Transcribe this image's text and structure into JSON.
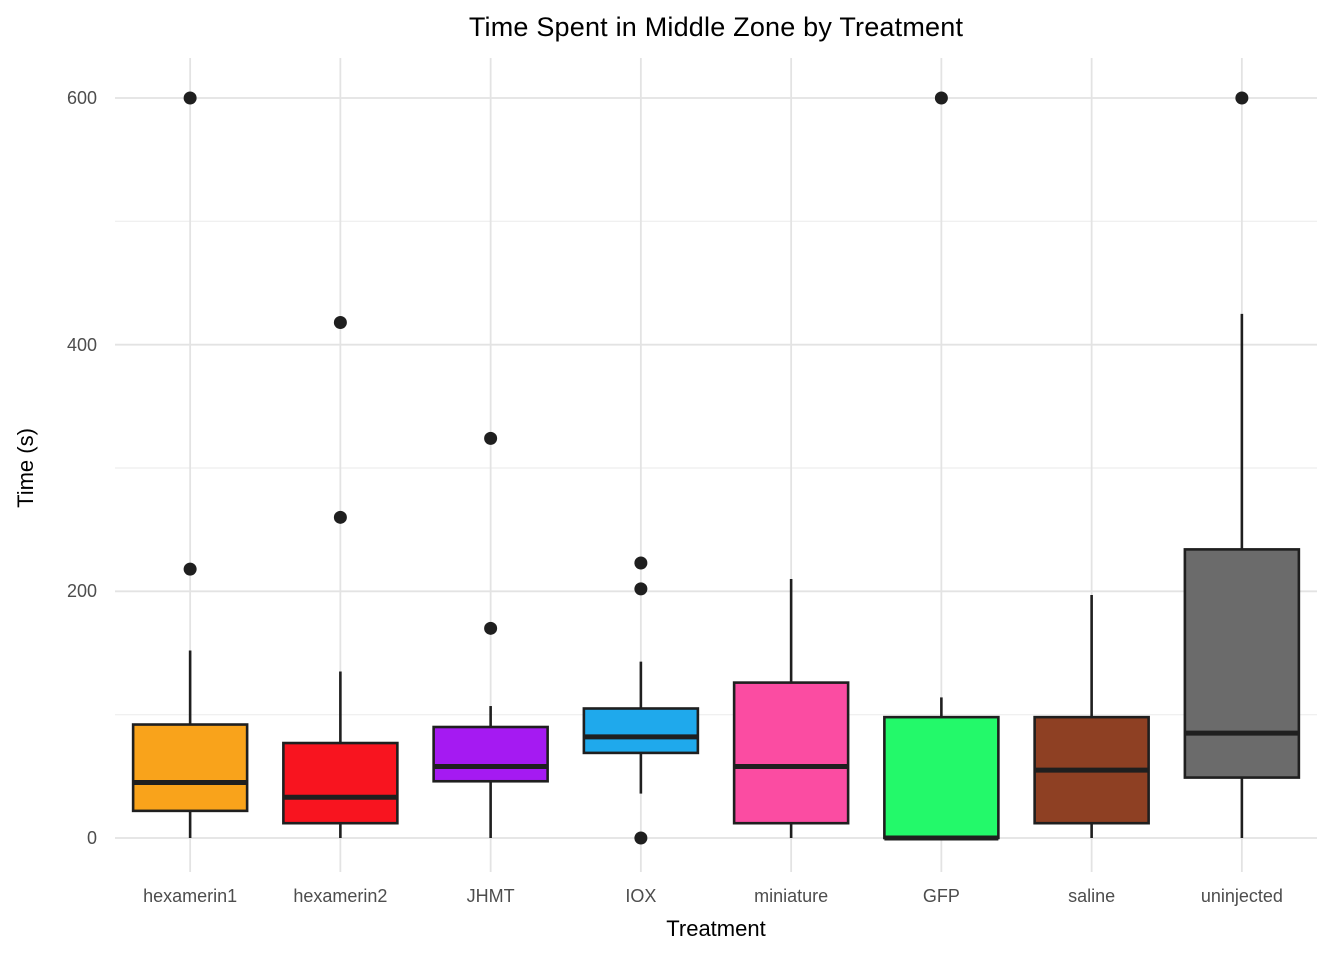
{
  "chart_data": {
    "type": "boxplot",
    "title": "Time Spent in Middle Zone by Treatment",
    "xlabel": "Treatment",
    "ylabel": "Time (s)",
    "ylim": [
      -30,
      632
    ],
    "yticks": [
      0,
      200,
      400,
      600
    ],
    "minor_yticks": [
      100,
      300,
      500
    ],
    "grid": true,
    "legend": "none",
    "categories": [
      "hexamerin1",
      "hexamerin2",
      "JHMT",
      "IOX",
      "miniature",
      "GFP",
      "saline",
      "uninjected"
    ],
    "series": [
      {
        "name": "hexamerin1",
        "color": "#F9A31B",
        "whisker_low": 0,
        "q1": 22,
        "median": 45,
        "q3": 92,
        "whisker_high": 152,
        "outliers": [
          218,
          600
        ]
      },
      {
        "name": "hexamerin2",
        "color": "#F8141F",
        "whisker_low": 0,
        "q1": 12,
        "median": 33,
        "q3": 77,
        "whisker_high": 135,
        "outliers": [
          260,
          418
        ]
      },
      {
        "name": "JHMT",
        "color": "#A51AF2",
        "whisker_low": 0,
        "q1": 46,
        "median": 58,
        "q3": 90,
        "whisker_high": 107,
        "outliers": [
          170,
          324
        ]
      },
      {
        "name": "IOX",
        "color": "#1FA9EC",
        "whisker_low": 36,
        "q1": 69,
        "median": 82,
        "q3": 105,
        "whisker_high": 143,
        "outliers": [
          0,
          202,
          223
        ]
      },
      {
        "name": "miniature",
        "color": "#FB4CA2",
        "whisker_low": 0,
        "q1": 12,
        "median": 58,
        "q3": 126,
        "whisker_high": 210,
        "outliers": []
      },
      {
        "name": "GFP",
        "color": "#23F96A",
        "whisker_low": 0,
        "q1": 0,
        "median": 0,
        "q3": 98,
        "whisker_high": 114,
        "outliers": [
          600
        ]
      },
      {
        "name": "saline",
        "color": "#8E4023",
        "whisker_low": 0,
        "q1": 12,
        "median": 55,
        "q3": 98,
        "whisker_high": 197,
        "outliers": []
      },
      {
        "name": "uninjected",
        "color": "#6B6B6B",
        "whisker_low": 0,
        "q1": 49,
        "median": 85,
        "q3": 234,
        "whisker_high": 425,
        "outliers": [
          600
        ]
      }
    ],
    "style": {
      "box_border": "#1F1F1F",
      "median_color": "#1F1F1F",
      "outlier_color": "#1F1F1F",
      "grid_major": "#E3E3E3",
      "grid_minor": "#EEEEEE",
      "tick_label_color": "#4D4D4D",
      "title_color": "#000000",
      "background": "#FFFFFF"
    }
  }
}
